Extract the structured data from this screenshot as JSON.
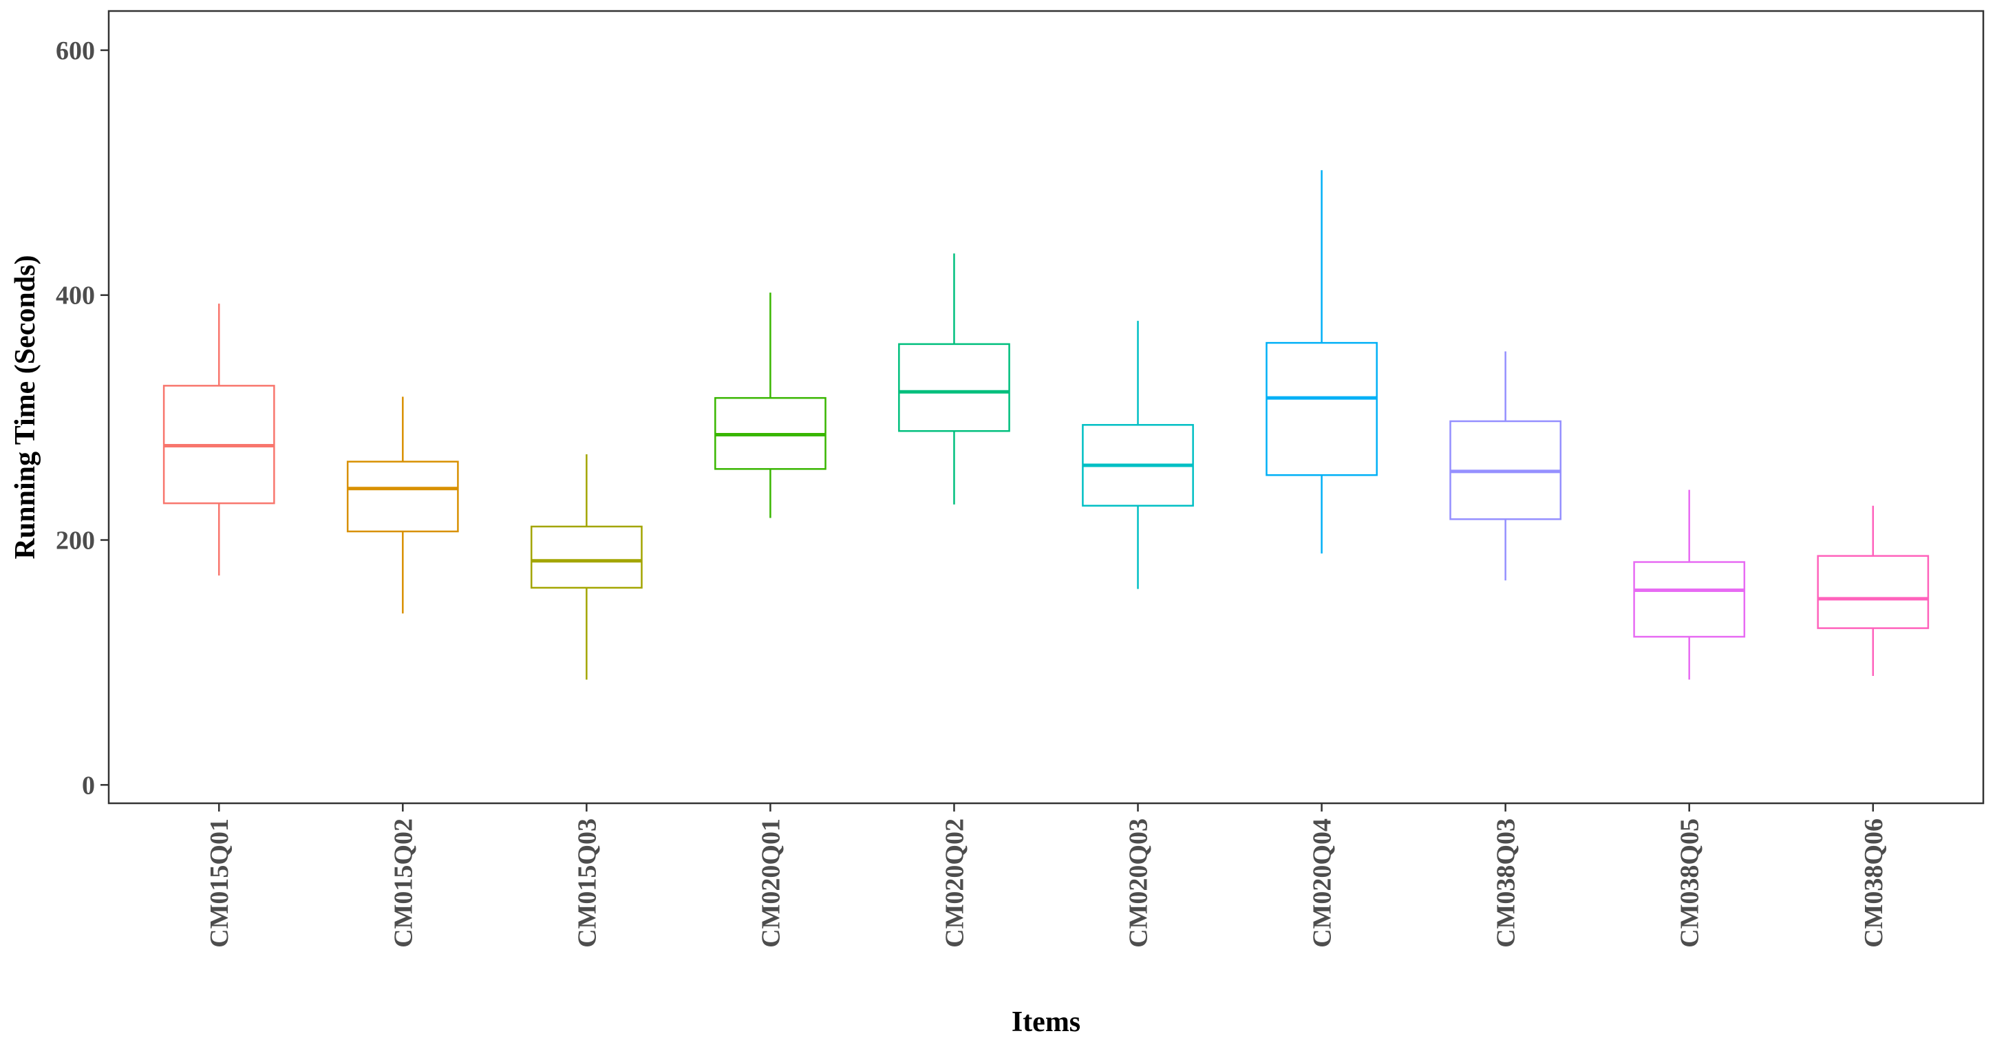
{
  "chart_data": {
    "type": "boxplot",
    "xlabel": "Items",
    "ylabel": "Running Time (Seconds)",
    "ylim": [
      -15,
      632
    ],
    "yticks": [
      0,
      200,
      400,
      600
    ],
    "grid": false,
    "legend": "none",
    "categories": [
      "CM015Q01",
      "CM015Q02",
      "CM015Q03",
      "CM020Q01",
      "CM020Q02",
      "CM020Q03",
      "CM020Q04",
      "CM038Q03",
      "CM038Q05",
      "CM038Q06"
    ],
    "colors": [
      "#F8766D",
      "#D89000",
      "#A3A500",
      "#39B600",
      "#00BF7D",
      "#00BFC4",
      "#00B0F6",
      "#9590FF",
      "#E76BF3",
      "#FF62BC"
    ],
    "boxes": [
      {
        "min": 171,
        "q1": 230,
        "median": 277,
        "q3": 326,
        "max": 393
      },
      {
        "min": 140,
        "q1": 207,
        "median": 242,
        "q3": 264,
        "max": 317
      },
      {
        "min": 86,
        "q1": 161,
        "median": 183,
        "q3": 211,
        "max": 270
      },
      {
        "min": 218,
        "q1": 258,
        "median": 286,
        "q3": 316,
        "max": 402
      },
      {
        "min": 229,
        "q1": 289,
        "median": 321,
        "q3": 360,
        "max": 434
      },
      {
        "min": 160,
        "q1": 228,
        "median": 261,
        "q3": 294,
        "max": 379
      },
      {
        "min": 189,
        "q1": 253,
        "median": 316,
        "q3": 361,
        "max": 502
      },
      {
        "min": 167,
        "q1": 217,
        "median": 256,
        "q3": 297,
        "max": 354
      },
      {
        "min": 86,
        "q1": 121,
        "median": 159,
        "q3": 182,
        "max": 241
      },
      {
        "min": 89,
        "q1": 128,
        "median": 152,
        "q3": 187,
        "max": 228
      }
    ]
  }
}
